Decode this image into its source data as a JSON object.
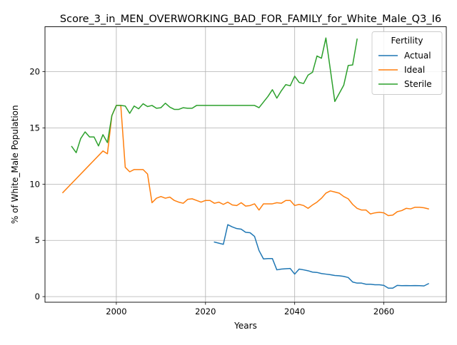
{
  "chart_data": {
    "type": "line",
    "title": "Score_3_in_MEN_OVERWORKING_BAD_FOR_FAMILY_for_White_Male_Q3_I6",
    "xlabel": "Years",
    "ylabel": "% of White_Male Population",
    "xlim": [
      1984,
      2074
    ],
    "ylim": [
      -0.5,
      24.0
    ],
    "xticks": [
      2000,
      2020,
      2040,
      2060
    ],
    "yticks": [
      0,
      5,
      10,
      15,
      20
    ],
    "grid": true,
    "legend": {
      "title": "Fertility",
      "placement": "top-right"
    },
    "series": [
      {
        "name": "Actual",
        "color": "#1f77b4",
        "x": [
          2022,
          2024,
          2025,
          2026,
          2027,
          2028,
          2029,
          2030,
          2031,
          2032,
          2033,
          2034,
          2035,
          2036,
          2037,
          2038,
          2039,
          2040,
          2041,
          2042,
          2043,
          2044,
          2045,
          2046,
          2047,
          2048,
          2049,
          2050,
          2051,
          2052,
          2053,
          2054,
          2055,
          2056,
          2057,
          2058,
          2059,
          2060,
          2061,
          2062,
          2063,
          2064,
          2065,
          2066,
          2067,
          2068,
          2069,
          2070
        ],
        "y": [
          4.85,
          4.65,
          6.4,
          6.2,
          6.05,
          6.0,
          5.72,
          5.68,
          5.35,
          4.1,
          3.35,
          3.38,
          3.38,
          2.38,
          2.45,
          2.48,
          2.5,
          2.0,
          2.45,
          2.38,
          2.3,
          2.18,
          2.15,
          2.05,
          2.0,
          1.95,
          1.88,
          1.85,
          1.8,
          1.7,
          1.3,
          1.2,
          1.2,
          1.1,
          1.1,
          1.05,
          1.05,
          1.0,
          0.75,
          0.75,
          1.0,
          0.97,
          0.98,
          0.97,
          0.98,
          0.97,
          0.95,
          1.15
        ]
      },
      {
        "name": "Ideal",
        "color": "#ff7f0e",
        "x": [
          1988,
          1997,
          1998,
          1999,
          2000,
          2001,
          2002,
          2003,
          2004,
          2005,
          2006,
          2007,
          2008,
          2009,
          2010,
          2011,
          2012,
          2013,
          2014,
          2015,
          2016,
          2017,
          2018,
          2019,
          2020,
          2021,
          2022,
          2023,
          2024,
          2025,
          2026,
          2027,
          2028,
          2029,
          2030,
          2031,
          2032,
          2033,
          2034,
          2035,
          2036,
          2037,
          2038,
          2039,
          2040,
          2041,
          2042,
          2043,
          2044,
          2045,
          2046,
          2047,
          2048,
          2049,
          2050,
          2051,
          2052,
          2053,
          2054,
          2055,
          2056,
          2057,
          2058,
          2059,
          2060,
          2061,
          2062,
          2063,
          2064,
          2065,
          2066,
          2067,
          2068,
          2069,
          2070
        ],
        "y": [
          9.25,
          12.95,
          12.7,
          16.1,
          17.0,
          17.0,
          11.5,
          11.1,
          11.3,
          11.3,
          11.3,
          10.9,
          8.35,
          8.75,
          8.9,
          8.75,
          8.85,
          8.55,
          8.4,
          8.3,
          8.65,
          8.7,
          8.55,
          8.4,
          8.55,
          8.55,
          8.3,
          8.4,
          8.2,
          8.4,
          8.15,
          8.1,
          8.35,
          8.05,
          8.1,
          8.25,
          7.7,
          8.25,
          8.25,
          8.25,
          8.35,
          8.3,
          8.55,
          8.55,
          8.1,
          8.2,
          8.1,
          7.85,
          8.15,
          8.4,
          8.75,
          9.2,
          9.4,
          9.3,
          9.2,
          8.9,
          8.7,
          8.2,
          7.85,
          7.7,
          7.7,
          7.35,
          7.45,
          7.5,
          7.45,
          7.2,
          7.25,
          7.55,
          7.65,
          7.85,
          7.8,
          7.95,
          7.95,
          7.9,
          7.8
        ]
      },
      {
        "name": "Sterile",
        "color": "#2ca02c",
        "x": [
          1990,
          1991,
          1992,
          1993,
          1994,
          1995,
          1996,
          1997,
          1998,
          1999,
          2000,
          2001,
          2002,
          2003,
          2004,
          2005,
          2006,
          2007,
          2008,
          2009,
          2010,
          2011,
          2012,
          2013,
          2014,
          2015,
          2016,
          2017,
          2018,
          2019,
          2020,
          2025,
          2030,
          2031,
          2032,
          2033,
          2034,
          2035,
          2036,
          2037,
          2038,
          2039,
          2040,
          2041,
          2042,
          2043,
          2044,
          2045,
          2046,
          2047,
          2049,
          2051,
          2052,
          2053,
          2054
        ],
        "y": [
          13.35,
          12.8,
          14.05,
          14.65,
          14.2,
          14.2,
          13.4,
          14.4,
          13.7,
          16.1,
          17.0,
          17.0,
          16.95,
          16.3,
          16.95,
          16.7,
          17.15,
          16.9,
          17.0,
          16.75,
          16.8,
          17.2,
          16.85,
          16.65,
          16.65,
          16.8,
          16.75,
          16.75,
          17.0,
          17.0,
          17.0,
          17.0,
          17.0,
          17.0,
          16.8,
          17.3,
          17.8,
          18.4,
          17.65,
          18.3,
          18.85,
          18.75,
          19.6,
          19.05,
          18.95,
          19.7,
          19.95,
          21.4,
          21.2,
          23.0,
          17.35,
          18.8,
          20.55,
          20.6,
          22.9
        ]
      }
    ]
  }
}
